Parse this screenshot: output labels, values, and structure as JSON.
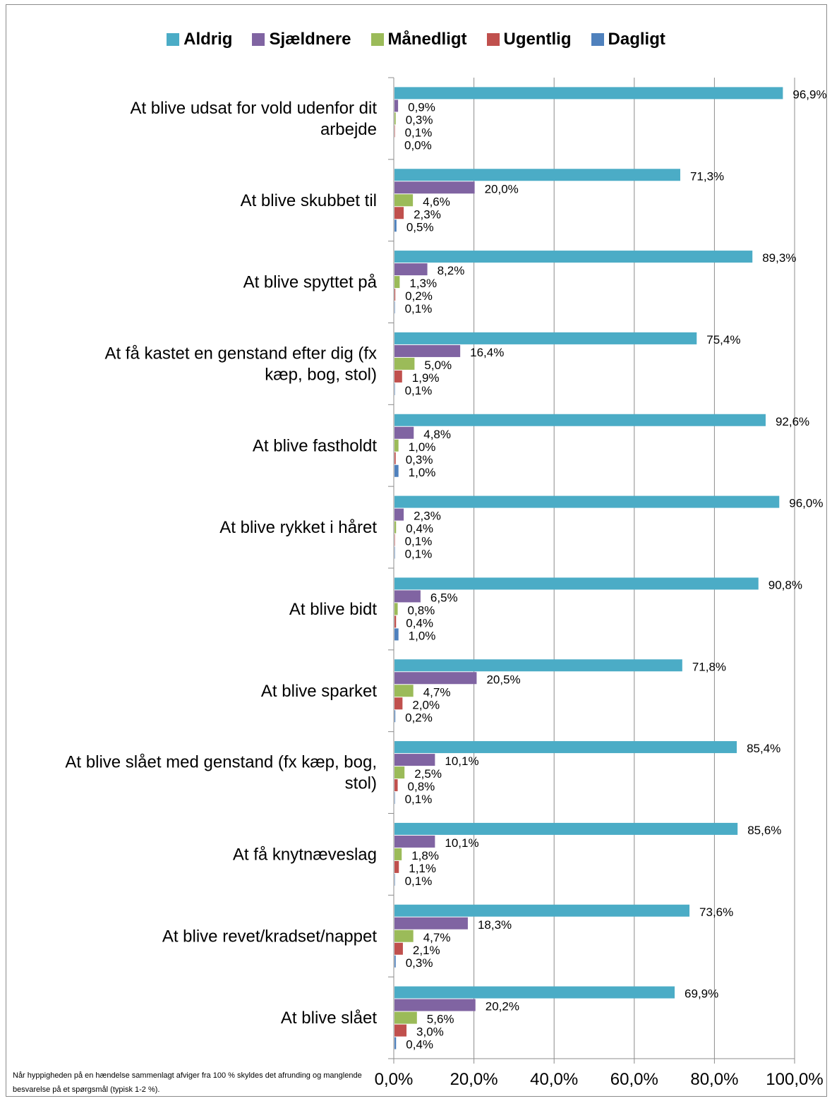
{
  "chart_data": {
    "type": "bar",
    "orientation": "horizontal",
    "categories": [
      "At blive udsat for vold udenfor dit arbejde",
      "At blive skubbet til",
      "At blive spyttet på",
      "At få kastet en genstand efter dig (fx kæp, bog, stol)",
      "At blive fastholdt",
      "At blive rykket i håret",
      "At blive bidt",
      "At blive sparket",
      "At blive slået med genstand (fx kæp, bog, stol)",
      "At få knytnæveslag",
      "At blive revet/kradset/nappet",
      "At blive slået"
    ],
    "series": [
      {
        "name": "Aldrig",
        "color": "#4bacc6",
        "values": [
          96.9,
          71.3,
          89.3,
          75.4,
          92.6,
          96.0,
          90.8,
          71.8,
          85.4,
          85.6,
          73.6,
          69.9
        ]
      },
      {
        "name": "Sjældnere",
        "color": "#8064a2",
        "values": [
          0.9,
          20.0,
          8.2,
          16.4,
          4.8,
          2.3,
          6.5,
          20.5,
          10.1,
          10.1,
          18.3,
          20.2
        ]
      },
      {
        "name": "Månedligt",
        "color": "#9bbb59",
        "values": [
          0.3,
          4.6,
          1.3,
          5.0,
          1.0,
          0.4,
          0.8,
          4.7,
          2.5,
          1.8,
          4.7,
          5.6
        ]
      },
      {
        "name": "Ugentlig",
        "color": "#c0504d",
        "values": [
          0.1,
          2.3,
          0.2,
          1.9,
          0.3,
          0.1,
          0.4,
          2.0,
          0.8,
          1.1,
          2.1,
          3.0
        ]
      },
      {
        "name": "Dagligt",
        "color": "#4f81bd",
        "values": [
          0.0,
          0.5,
          0.1,
          0.1,
          1.0,
          0.1,
          1.0,
          0.2,
          0.1,
          0.1,
          0.3,
          0.4
        ]
      }
    ],
    "value_labels": [
      [
        "96,9%",
        "71,3%",
        "89,3%",
        "75,4%",
        "92,6%",
        "96,0%",
        "90,8%",
        "71,8%",
        "85,4%",
        "85,6%",
        "73,6%",
        "69,9%"
      ],
      [
        "0,9%",
        "20,0%",
        "8,2%",
        "16,4%",
        "4,8%",
        "2,3%",
        "6,5%",
        "20,5%",
        "10,1%",
        "10,1%",
        "18,3%",
        "20,2%"
      ],
      [
        "0,3%",
        "4,6%",
        "1,3%",
        "5,0%",
        "1,0%",
        "0,4%",
        "0,8%",
        "4,7%",
        "2,5%",
        "1,8%",
        "4,7%",
        "5,6%"
      ],
      [
        "0,1%",
        "2,3%",
        "0,2%",
        "1,9%",
        "0,3%",
        "0,1%",
        "0,4%",
        "2,0%",
        "0,8%",
        "1,1%",
        "2,1%",
        "3,0%"
      ],
      [
        "0,0%",
        "0,5%",
        "0,1%",
        "0,1%",
        "1,0%",
        "0,1%",
        "1,0%",
        "0,2%",
        "0,1%",
        "0,1%",
        "0,3%",
        "0,4%"
      ]
    ],
    "xlim": [
      0,
      100
    ],
    "x_ticks": [
      "0,0%",
      "20,0%",
      "40,0%",
      "60,0%",
      "80,0%",
      "100,0%"
    ],
    "grid": "vertical",
    "legend_position": "top",
    "footnote": "Når hyppigheden på en hændelse sammenlagt afviger fra 100 % skyldes det afrunding og manglende besvarelse på et spørgsmål (typisk 1-2 %)."
  }
}
